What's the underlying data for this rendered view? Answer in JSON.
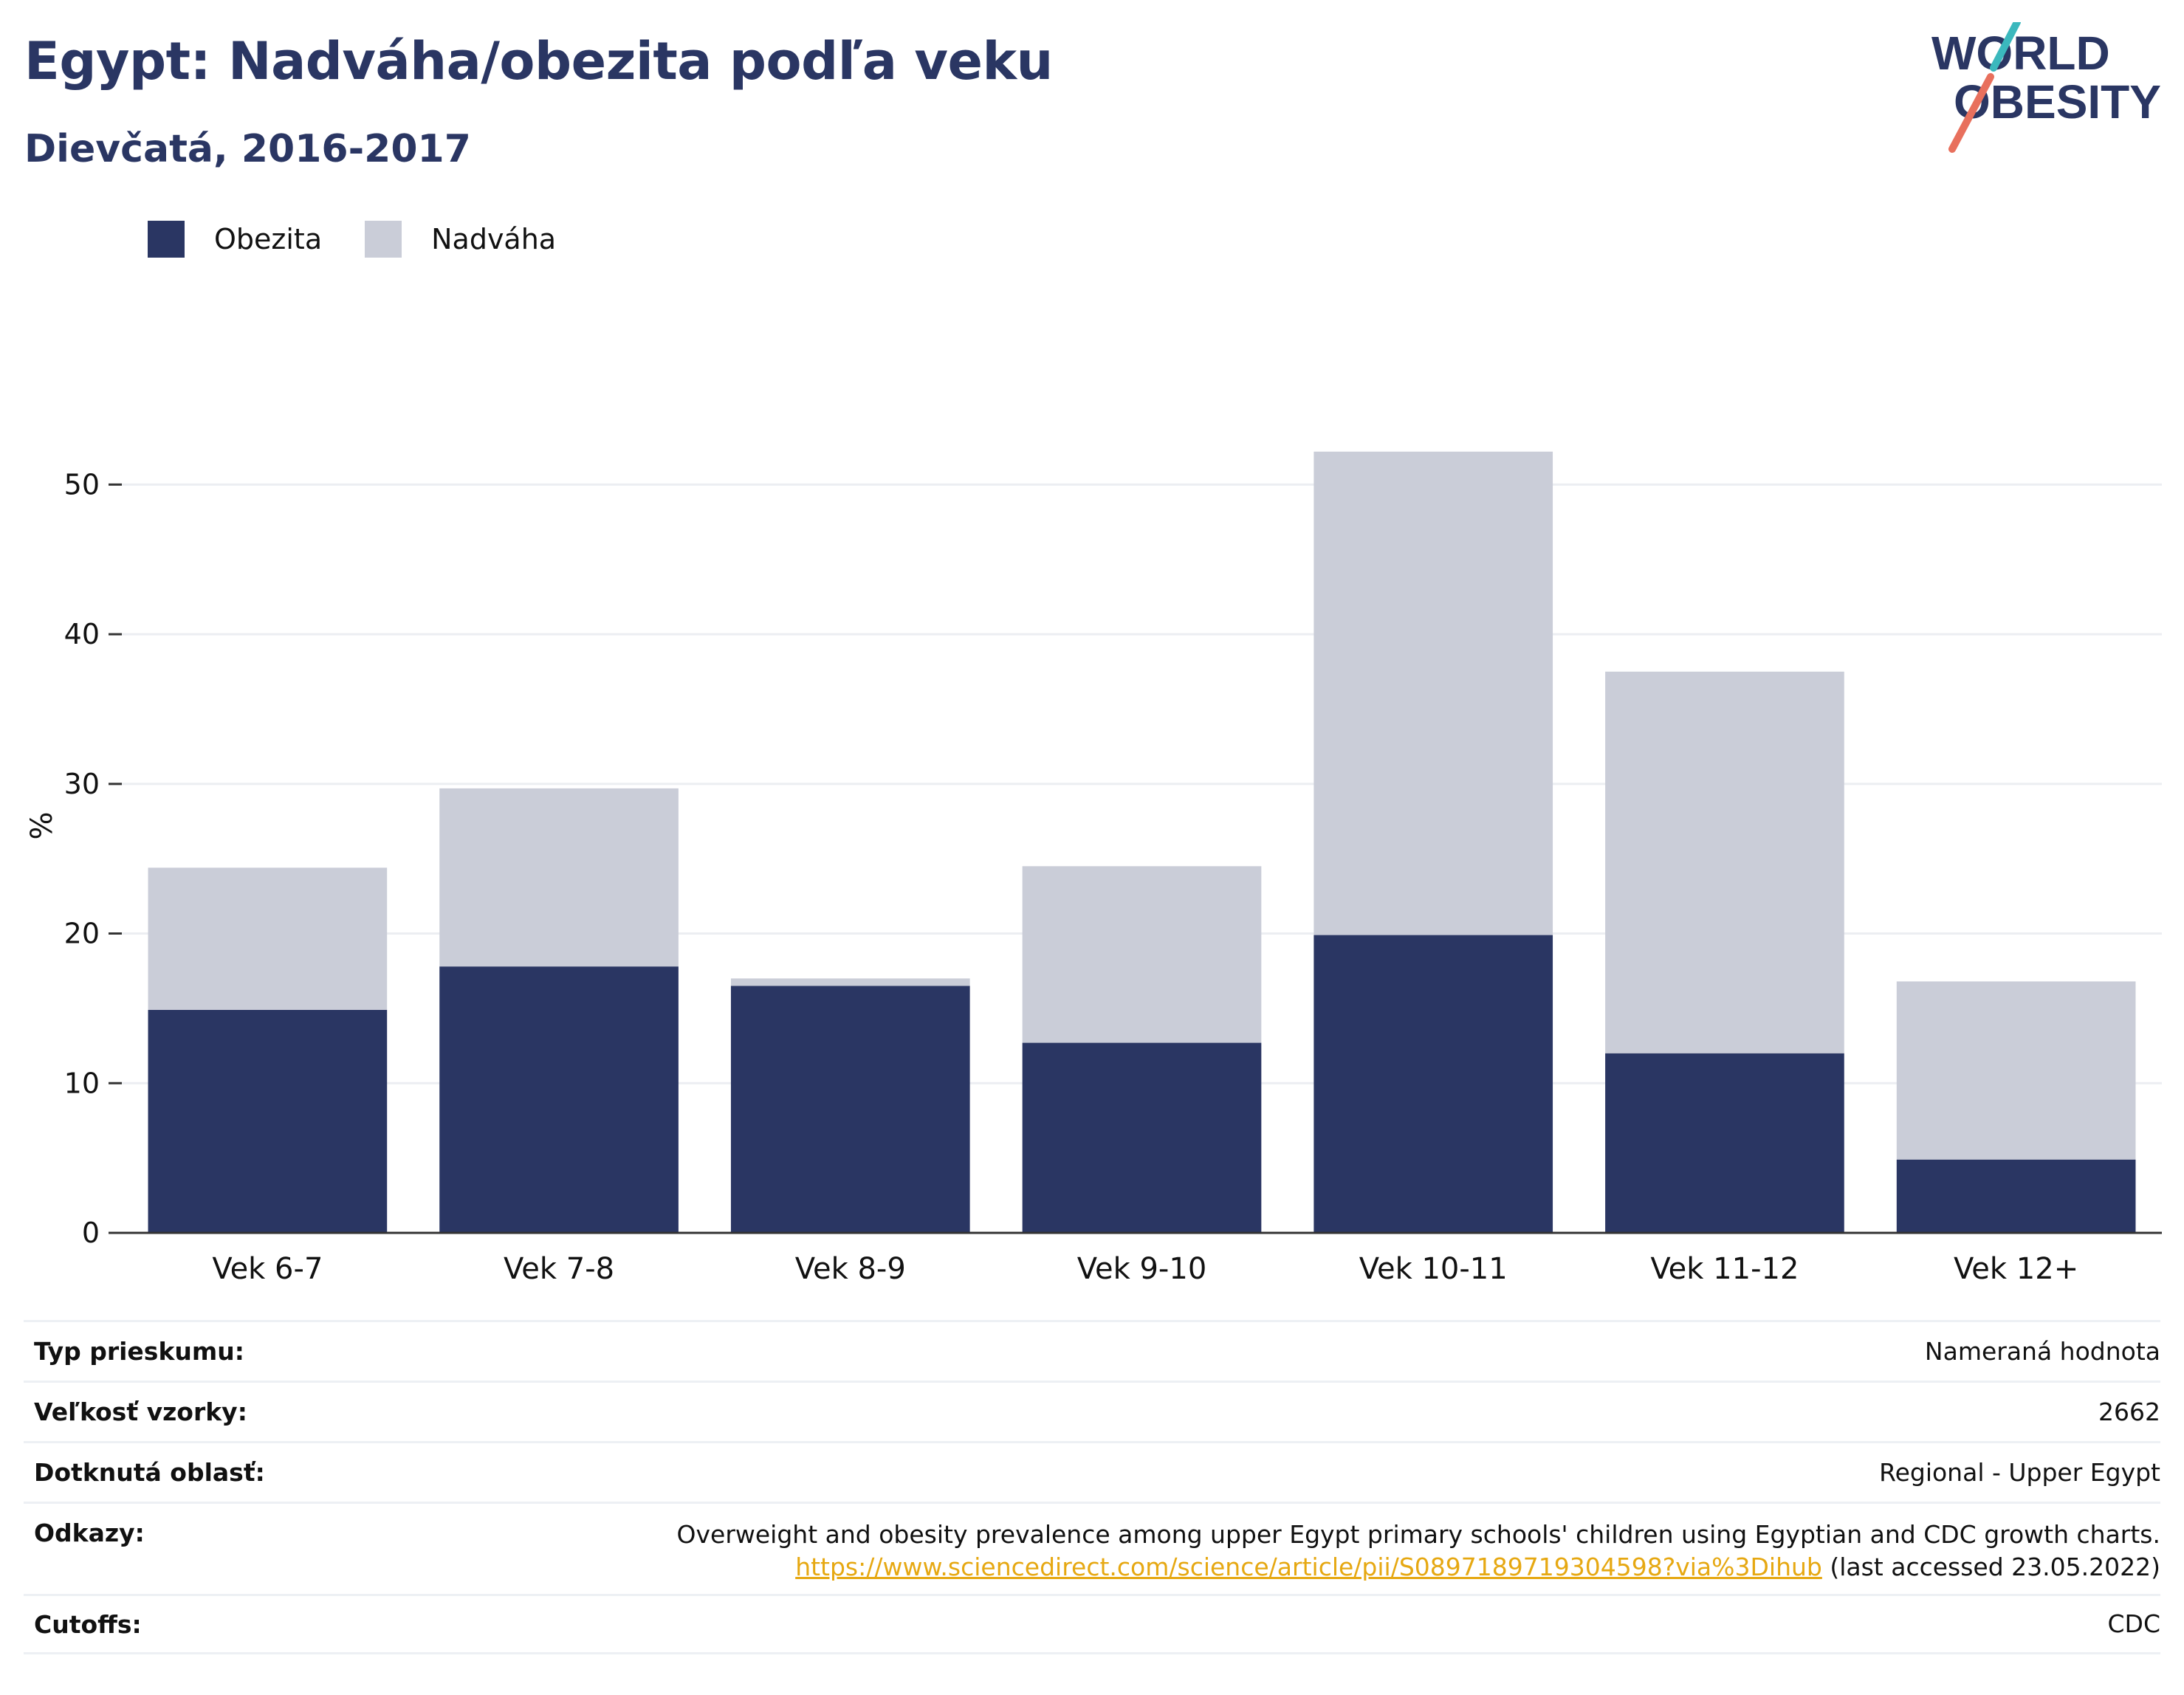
{
  "header": {
    "title": "Egypt: Nadváha/obezita podľa veku",
    "subtitle": "Dievčatá, 2016-2017"
  },
  "logo": {
    "line1": "WORLD",
    "line2": "OBESITY"
  },
  "legend": {
    "items": [
      {
        "label": "Obezita",
        "color": "#2a3663"
      },
      {
        "label": "Nadváha",
        "color": "#cacdd8"
      }
    ]
  },
  "chart_data": {
    "type": "bar",
    "stacked": true,
    "categories": [
      "Vek 6-7",
      "Vek 7-8",
      "Vek 8-9",
      "Vek 9-10",
      "Vek 10-11",
      "Vek 11-12",
      "Vek 12+"
    ],
    "series": [
      {
        "name": "Obezita",
        "color": "#2a3663",
        "values": [
          14.9,
          17.8,
          16.5,
          12.7,
          19.9,
          12.0,
          4.9
        ]
      },
      {
        "name": "Nadváha",
        "color": "#cacdd8",
        "values": [
          9.5,
          11.9,
          0.5,
          11.8,
          32.3,
          25.5,
          11.9
        ]
      }
    ],
    "ylabel": "%",
    "xlabel": "",
    "ylim": [
      0,
      55
    ],
    "yticks": [
      0,
      10,
      20,
      30,
      40,
      50
    ],
    "grid": true,
    "legend_position": "top-left"
  },
  "info": {
    "rows": [
      {
        "key": "Typ prieskumu:",
        "value": "Nameraná hodnota"
      },
      {
        "key": "Veľkosť vzorky:",
        "value": "2662"
      },
      {
        "key": "Dotknutá oblasť:",
        "value": "Regional - Upper Egypt"
      },
      {
        "key": "Odkazy:",
        "value": "Overweight and obesity prevalence among upper Egypt primary schools' children using Egyptian and CDC growth charts.",
        "link": "https://www.sciencedirect.com/science/article/pii/S0897189719304598?via%3Dihub",
        "link_suffix": " (last accessed 23.05.2022)"
      },
      {
        "key": "Cutoffs:",
        "value": "CDC"
      }
    ]
  }
}
